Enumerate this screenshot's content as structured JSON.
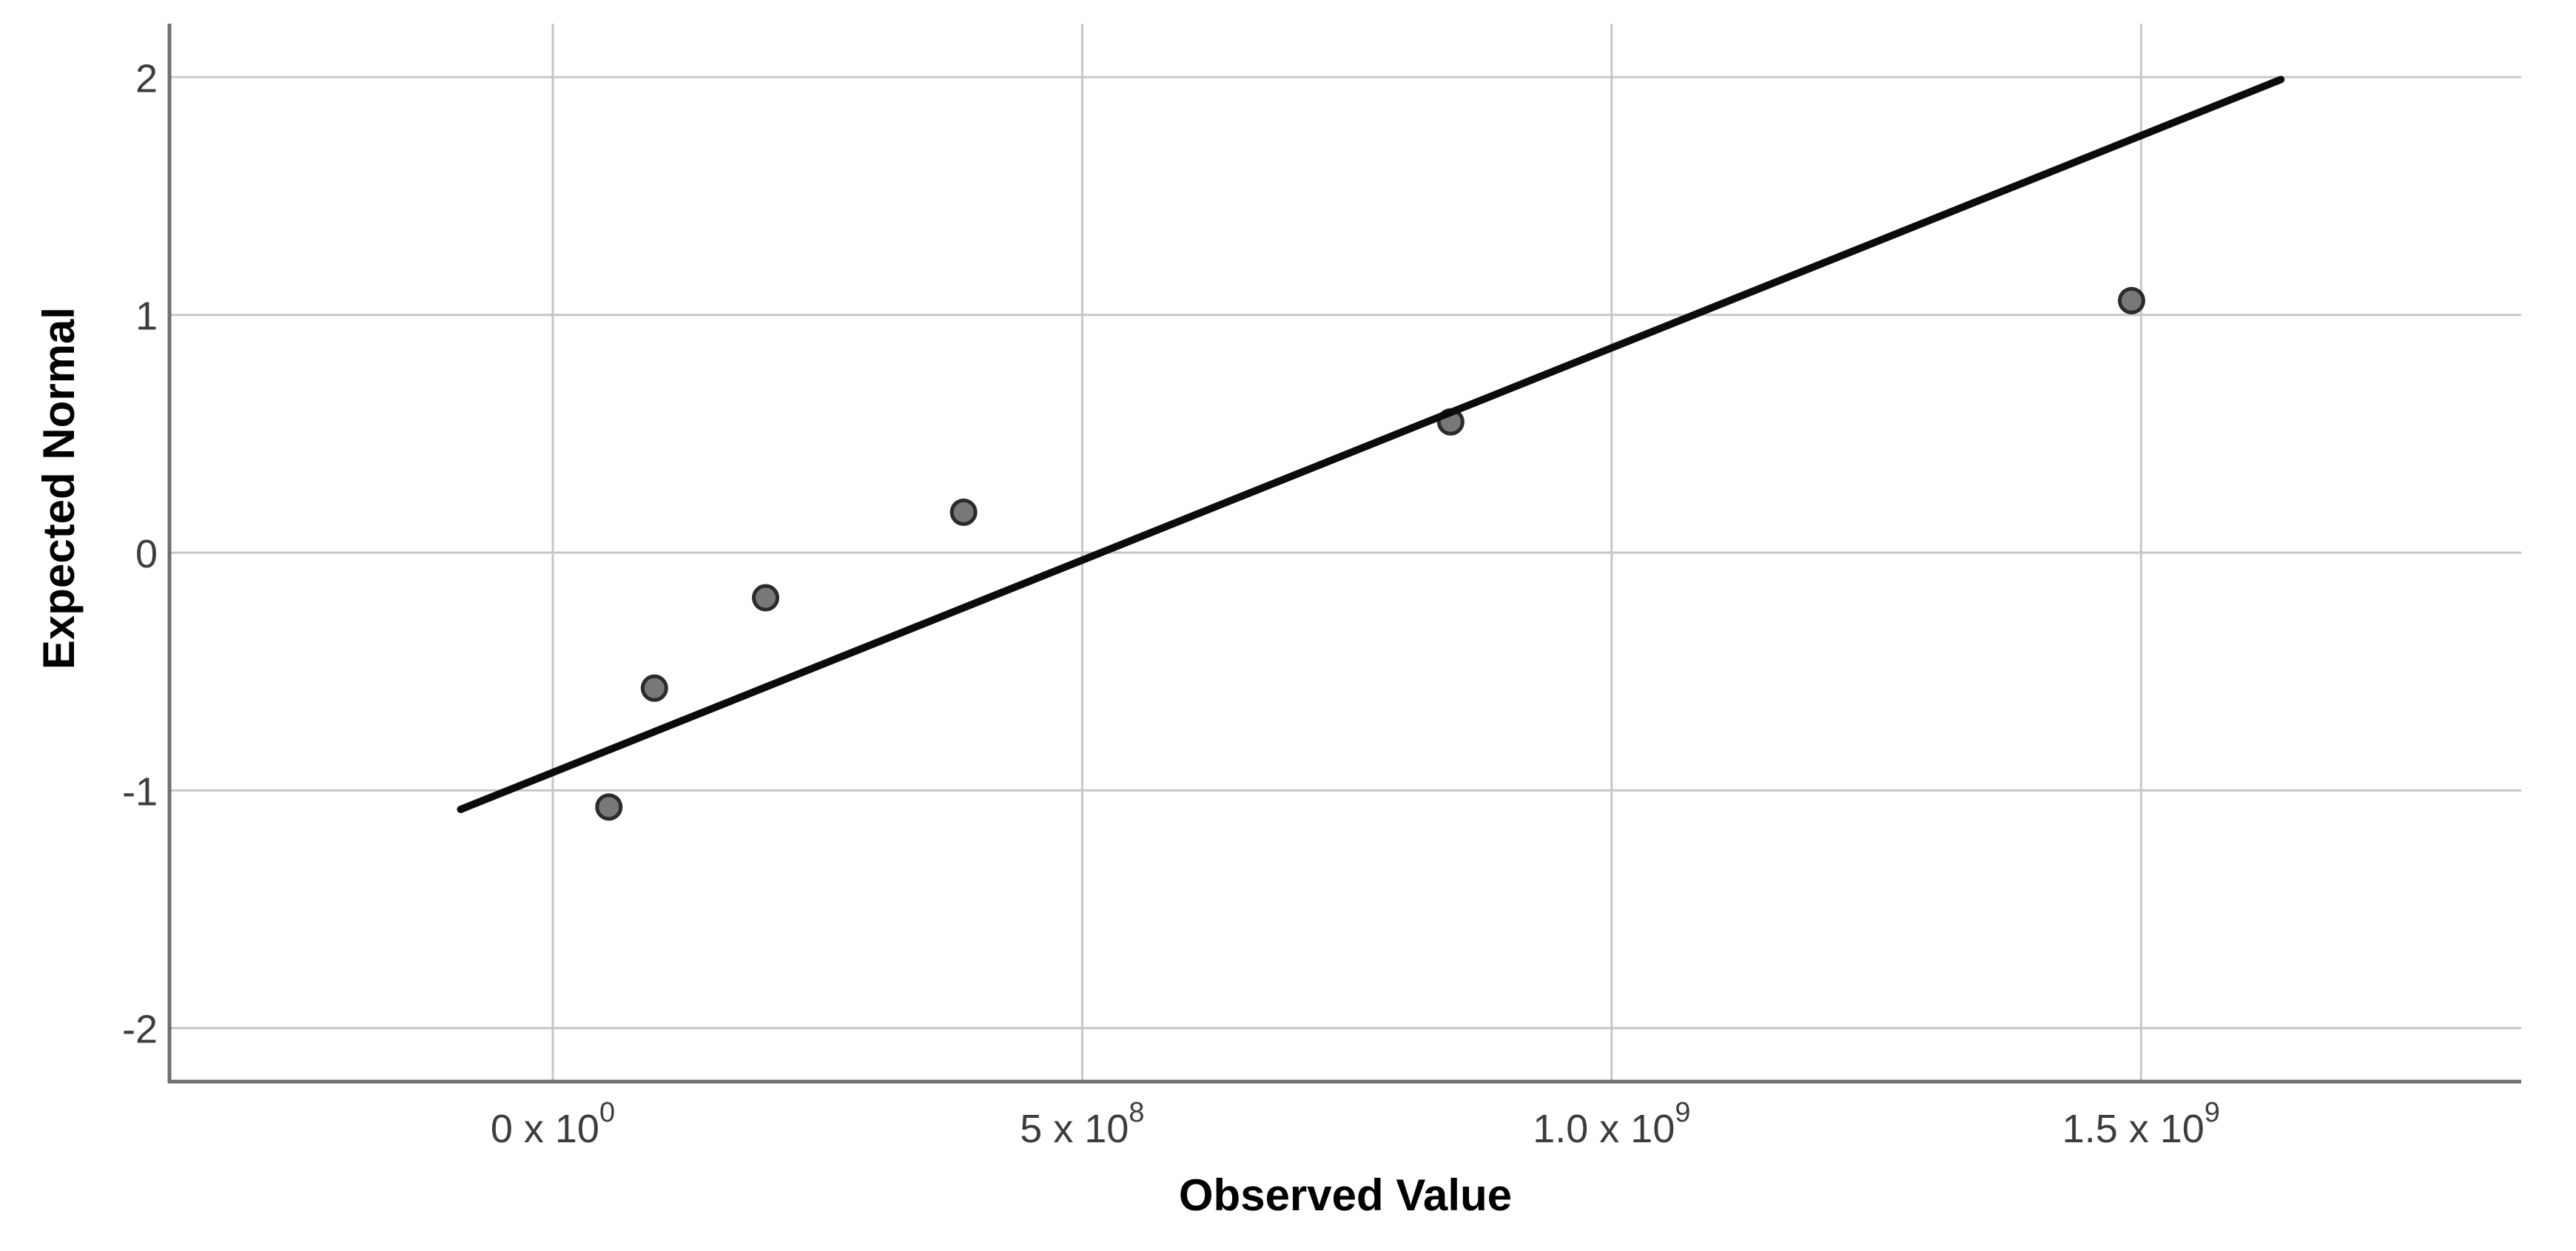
{
  "chart_data": {
    "type": "scatter",
    "chart_kind": "normal-qq-plot",
    "title": "",
    "xlabel": "Observed Value",
    "ylabel": "Expected Normal",
    "xlim": [
      -362000000,
      1859000000
    ],
    "ylim": [
      -2.225,
      2.225
    ],
    "grid": true,
    "legend": false,
    "x_ticks": [
      {
        "value": 0,
        "base": "0 x 10",
        "sup": "0"
      },
      {
        "value": 500000000,
        "base": "5 x 10",
        "sup": "8"
      },
      {
        "value": 1000000000,
        "base": "1.0 x 10",
        "sup": "9"
      },
      {
        "value": 1500000000,
        "base": "1.5 x 10",
        "sup": "9"
      }
    ],
    "y_ticks": [
      {
        "value": 2,
        "label": "2"
      },
      {
        "value": 1,
        "label": "1"
      },
      {
        "value": 0,
        "label": "0"
      },
      {
        "value": -1,
        "label": "-1"
      },
      {
        "value": -2,
        "label": "-2"
      }
    ],
    "points": [
      {
        "x": 53000000,
        "y": -1.07
      },
      {
        "x": 96000000,
        "y": -0.57
      },
      {
        "x": 201000000,
        "y": -0.19
      },
      {
        "x": 388000000,
        "y": 0.17
      },
      {
        "x": 848000000,
        "y": 0.55
      },
      {
        "x": 1491000000,
        "y": 1.06
      }
    ],
    "fit_line": {
      "x1": -87000000,
      "y1": -1.08,
      "x2": 1632000000,
      "y2": 1.99
    },
    "colors": {
      "background": "#ffffff",
      "grid": "#c7c7c7",
      "axis": "#6e6e6e",
      "tick_label": "#3d3d3d",
      "axis_title": "#000000",
      "point_fill": "#787878",
      "point_stroke": "#2b2b2b",
      "fit_line": "#0b0b0b"
    }
  }
}
